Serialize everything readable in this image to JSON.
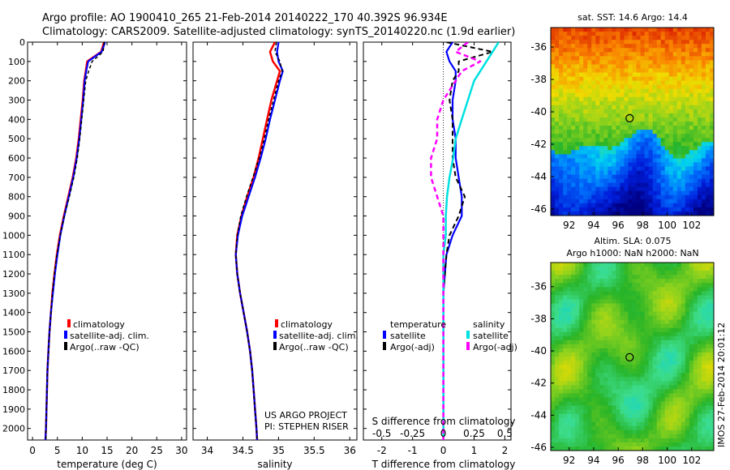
{
  "header": {
    "line1": "Argo profile: AO 1900410_265 21-Feb-2014 20140222_170 40.392S 96.934E",
    "line2": "Climatology: CARS2009. Satellite-adjusted climatology: synTS_20140220.nc (1.9d earlier)"
  },
  "project": {
    "line1": "US ARGO PROJECT",
    "line2": "PI: STEPHEN RISER"
  },
  "imos_stamp": "IMOS 27-Feb-2014 20:01:12",
  "colors": {
    "red": "#ff0000",
    "blue": "#0000ff",
    "black": "#000000",
    "cyan": "#00e0e0",
    "magenta": "#ff00ff"
  },
  "chart_data": [
    {
      "type": "line",
      "xlabel": "temperature (deg C)",
      "xlim": [
        -1,
        31
      ],
      "ylim": [
        2060,
        0
      ],
      "xticks": [
        "0",
        "5",
        "10",
        "15",
        "20",
        "25",
        "30"
      ],
      "yticks": [
        "0",
        "100",
        "200",
        "300",
        "400",
        "500",
        "600",
        "700",
        "800",
        "900",
        "1000",
        "1100",
        "1200",
        "1300",
        "1400",
        "1500",
        "1600",
        "1700",
        "1800",
        "1900",
        "2000"
      ],
      "legend": [
        "climatology",
        "satellite-adj. clim.",
        "Argo(..raw -QC)"
      ],
      "depth": [
        0,
        50,
        100,
        150,
        200,
        300,
        400,
        500,
        600,
        700,
        800,
        900,
        1000,
        1100,
        1200,
        1300,
        1400,
        1500,
        1600,
        1700,
        1800,
        1900,
        2000,
        2060
      ],
      "series": [
        {
          "name": "climatology",
          "values": [
            14.4,
            13.8,
            11.0,
            10.7,
            10.4,
            10.1,
            9.7,
            9.3,
            8.8,
            8.1,
            7.2,
            6.3,
            5.5,
            4.9,
            4.4,
            4.0,
            3.7,
            3.4,
            3.2,
            3.0,
            2.9,
            2.8,
            2.7,
            2.6
          ]
        },
        {
          "name": "satellite-adj. clim.",
          "values": [
            14.6,
            13.9,
            11.2,
            10.8,
            10.5,
            10.2,
            9.8,
            9.4,
            8.9,
            8.2,
            7.3,
            6.4,
            5.6,
            5.0,
            4.5,
            4.1,
            3.7,
            3.4,
            3.2,
            3.0,
            2.9,
            2.8,
            2.7,
            2.6
          ]
        },
        {
          "name": "Argo(..raw -QC)",
          "values": [
            14.4,
            14.2,
            12.0,
            11.3,
            10.7,
            10.3,
            9.9,
            9.5,
            9.0,
            8.3,
            7.4,
            6.4,
            5.6,
            4.9,
            4.4,
            4.0,
            3.7,
            3.4,
            3.2,
            3.0,
            2.9,
            2.8,
            2.7,
            2.7
          ]
        }
      ]
    },
    {
      "type": "line",
      "xlabel": "salinity",
      "xlim": [
        33.8,
        36.1
      ],
      "ylim": [
        2060,
        0
      ],
      "xticks": [
        "34",
        "34.5",
        "35",
        "35.5",
        "36"
      ],
      "legend": [
        "climatology",
        "satellite-adj. clim.",
        "Argo(..raw -QC)"
      ],
      "depth": [
        0,
        50,
        100,
        150,
        200,
        300,
        400,
        500,
        600,
        700,
        800,
        900,
        1000,
        1100,
        1200,
        1300,
        1400,
        1500,
        1600,
        1700,
        1800,
        1900,
        2000,
        2060
      ],
      "series": [
        {
          "name": "climatology",
          "values": [
            34.95,
            34.88,
            34.92,
            35.02,
            34.98,
            34.9,
            34.84,
            34.78,
            34.72,
            34.65,
            34.56,
            34.48,
            34.42,
            34.4,
            34.42,
            34.46,
            34.51,
            34.56,
            34.6,
            34.63,
            34.65,
            34.67,
            34.69,
            34.7
          ]
        },
        {
          "name": "satellite-adj. clim.",
          "values": [
            35.0,
            34.98,
            35.0,
            35.06,
            35.02,
            34.95,
            34.88,
            34.82,
            34.75,
            34.67,
            34.58,
            34.49,
            34.43,
            34.4,
            34.42,
            34.46,
            34.51,
            34.56,
            34.6,
            34.63,
            34.65,
            34.67,
            34.69,
            34.7
          ]
        },
        {
          "name": "Argo(..raw -QC)",
          "values": [
            34.97,
            34.95,
            35.02,
            35.05,
            35.0,
            34.93,
            34.86,
            34.8,
            34.73,
            34.64,
            34.55,
            34.47,
            34.42,
            34.4,
            34.42,
            34.46,
            34.51,
            34.56,
            34.6,
            34.63,
            34.65,
            34.67,
            34.69,
            34.7
          ]
        }
      ]
    },
    {
      "type": "line",
      "xlabel": "T difference from climatology",
      "x2label": "S difference from climatology",
      "xlim": [
        -2.6,
        2.2
      ],
      "ylim": [
        2060,
        0
      ],
      "xticks": [
        "-2",
        "-1",
        "0",
        "1",
        "2"
      ],
      "x2ticks": [
        "-0.5",
        "-0.25",
        "0",
        "0.25",
        "0.5"
      ],
      "legend_groups": [
        {
          "title": "temperature",
          "items": [
            "satellite",
            "Argo(-adj)"
          ]
        },
        {
          "title": "salinity",
          "items": [
            "satellite",
            "Argo(-adj)"
          ]
        }
      ],
      "depth": [
        0,
        50,
        100,
        150,
        200,
        300,
        400,
        500,
        600,
        700,
        800,
        900,
        1000,
        1100,
        1200,
        1300,
        1400,
        1500,
        1600,
        1700,
        1800,
        1900,
        2000,
        2060
      ],
      "series": [
        {
          "name": "temperature satellite",
          "values": [
            0.3,
            0.1,
            0.2,
            0.4,
            0.4,
            0.3,
            0.3,
            0.4,
            0.4,
            0.5,
            0.6,
            0.6,
            0.3,
            0.1,
            0.05,
            0.0,
            0.0,
            0.0,
            0.0,
            0.0,
            0.0,
            0.0,
            0.0,
            0.0
          ]
        },
        {
          "name": "temperature Argo(-adj)",
          "values": [
            0.1,
            1.6,
            0.5,
            0.5,
            0.3,
            0.2,
            0.3,
            0.3,
            0.3,
            0.4,
            0.7,
            0.5,
            0.2,
            0.1,
            0.05,
            0.0,
            0.0,
            0.0,
            0.0,
            0.0,
            0.0,
            0.0,
            0.0,
            0.0
          ]
        },
        {
          "name": "salinity satellite",
          "values": [
            0.45,
            0.4,
            0.35,
            0.3,
            0.25,
            0.2,
            0.15,
            0.1,
            0.08,
            0.05,
            0.03,
            0.02,
            0.02,
            0.0,
            0.0,
            0.0,
            0.0,
            0.0,
            0.0,
            0.0,
            0.0,
            0.0,
            0.0,
            0.0
          ]
        },
        {
          "name": "salinity Argo(-adj)",
          "values": [
            0.2,
            0.1,
            0.3,
            0.15,
            0.1,
            0.0,
            -0.05,
            -0.05,
            -0.1,
            -0.1,
            -0.05,
            0.0,
            0.0,
            0.0,
            0.0,
            0.0,
            0.0,
            0.0,
            0.0,
            0.0,
            0.0,
            0.0,
            0.0,
            0.0
          ]
        }
      ]
    },
    {
      "type": "heatmap",
      "title": "sat. SST: 14.6 Argo: 14.4",
      "xlim": [
        90.5,
        103.8
      ],
      "ylim": [
        -46.4,
        -34.8
      ],
      "xticks": [
        "92",
        "94",
        "96",
        "98",
        "100",
        "102"
      ],
      "yticks": [
        "-36",
        "-38",
        "-40",
        "-42",
        "-44",
        "-46"
      ],
      "marker": {
        "lon": 96.934,
        "lat": -40.392
      }
    },
    {
      "type": "heatmap",
      "title": "Altim. SLA: 0.075",
      "subtitle": "Argo h1000: NaN h2000: NaN",
      "xlim": [
        90.5,
        103.8
      ],
      "ylim": [
        -46.2,
        -34.5
      ],
      "xticks": [
        "92",
        "94",
        "96",
        "98",
        "100",
        "102"
      ],
      "yticks": [
        "-36",
        "-38",
        "-40",
        "-42",
        "-44",
        "-46"
      ],
      "marker": {
        "lon": 96.934,
        "lat": -40.392
      }
    }
  ]
}
